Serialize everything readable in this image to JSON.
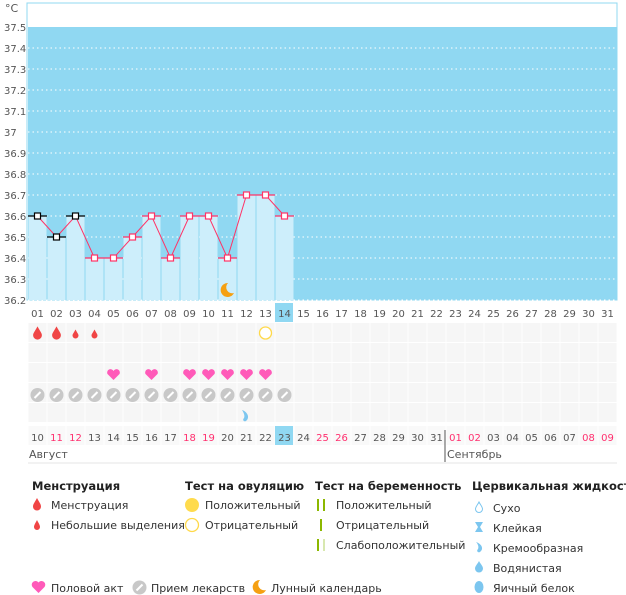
{
  "chart": {
    "unit": "°C",
    "y_ticks": [
      "37.5",
      "37.4",
      "37.3",
      "37.2",
      "37.1",
      "37",
      "36.9",
      "36.8",
      "36.7",
      "36.6",
      "36.5",
      "36.4",
      "36.3",
      "36.2"
    ],
    "ylim": [
      36.2,
      37.5
    ],
    "cycle_days": [
      "01",
      "02",
      "03",
      "04",
      "05",
      "06",
      "07",
      "08",
      "09",
      "10",
      "11",
      "12",
      "13",
      "14",
      "15",
      "16",
      "17",
      "18",
      "19",
      "20",
      "21",
      "22",
      "23",
      "24",
      "25",
      "26",
      "27",
      "28",
      "29",
      "30",
      "31"
    ],
    "current_cycle_day": "14",
    "temperatures": [
      36.6,
      36.5,
      36.6,
      36.4,
      36.4,
      36.5,
      36.6,
      36.4,
      36.6,
      36.6,
      36.4,
      36.7,
      36.7,
      36.6
    ],
    "black_marker_days": [
      "01",
      "02",
      "03"
    ],
    "moon_day": "11",
    "colors": {
      "background": "#90d8f2",
      "bar": "#cdeefb",
      "line": "#ff3366",
      "today": "#90d8f2"
    }
  },
  "rows": {
    "menstruation": {
      "heavy_days": [
        "01",
        "02"
      ],
      "light_days": [
        "03",
        "04"
      ]
    },
    "ovulation_test": {
      "negative_days": [
        "13"
      ]
    },
    "pregnancy_test": {},
    "intercourse_days": [
      "05",
      "07",
      "09",
      "10",
      "11",
      "12",
      "13"
    ],
    "medication_days": [
      "01",
      "02",
      "03",
      "04",
      "05",
      "06",
      "07",
      "08",
      "09",
      "10",
      "11",
      "12",
      "13",
      "14"
    ],
    "cervical_fluid": {
      "creamy_days": [
        "12"
      ]
    }
  },
  "dates": {
    "labels": [
      "10",
      "11",
      "12",
      "13",
      "14",
      "15",
      "16",
      "17",
      "18",
      "19",
      "20",
      "21",
      "22",
      "23",
      "24",
      "25",
      "26",
      "27",
      "28",
      "29",
      "30",
      "31",
      "01",
      "02",
      "03",
      "04",
      "05",
      "06",
      "07",
      "08",
      "09"
    ],
    "weekend": [
      "11",
      "12",
      "18",
      "19",
      "25",
      "26",
      "01",
      "02",
      "08",
      "09"
    ],
    "weekend_index": [
      1,
      2,
      8,
      9,
      15,
      16,
      22,
      23,
      29,
      30
    ],
    "today": "23",
    "month1": "Август",
    "month2": "Сентябрь"
  },
  "legend": {
    "menstruation": {
      "title": "Менструация",
      "items": [
        "Менструация",
        "Небольшие выделения"
      ]
    },
    "ovulation": {
      "title": "Тест на овуляцию",
      "items": [
        "Положительный",
        "Отрицательный"
      ]
    },
    "pregnancy": {
      "title": "Тест на беременность",
      "items": [
        "Положительный",
        "Отрицательный",
        "Слабоположительный"
      ]
    },
    "cervical": {
      "title": "Цервикальная жидкость",
      "items": [
        "Сухо",
        "Клейкая",
        "Кремообразная",
        "Водянистая",
        "Яичный белок"
      ]
    },
    "other": [
      "Половой акт",
      "Прием лекарств",
      "Лунный календарь"
    ]
  }
}
